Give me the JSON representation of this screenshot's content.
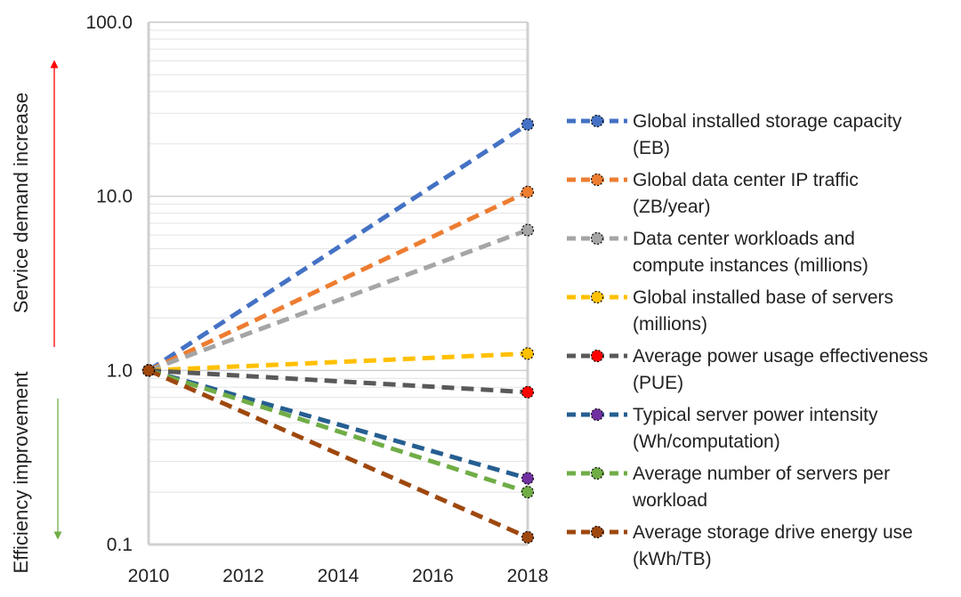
{
  "chart_data": {
    "type": "line",
    "y_scale": "log",
    "ylim": [
      0.1,
      100.0
    ],
    "y_ticks": [
      0.1,
      1.0,
      10.0,
      100.0
    ],
    "y_tick_labels": [
      "0.1",
      "1.0",
      "10.0",
      "100.0"
    ],
    "xlim": [
      2010,
      2018
    ],
    "x_ticks": [
      2010,
      2012,
      2014,
      2016,
      2018
    ],
    "x_tick_labels": [
      "2010",
      "2012",
      "2014",
      "2016",
      "2018"
    ],
    "grid": "horizontal minor log gridlines",
    "legend_position": "right",
    "series": [
      {
        "name": [
          "Global installed storage capacity",
          "(EB)"
        ],
        "x": [
          2010,
          2018
        ],
        "y": [
          1.0,
          25.9
        ],
        "color": "#4472C4",
        "marker": "#4472C4"
      },
      {
        "name": [
          "Global data center IP traffic",
          "(ZB/year)"
        ],
        "x": [
          2010,
          2018
        ],
        "y": [
          1.0,
          10.6
        ],
        "color": "#ED7D31",
        "marker": "#ED7D31"
      },
      {
        "name": [
          "Data center workloads and",
          "compute instances (millions)"
        ],
        "x": [
          2010,
          2018
        ],
        "y": [
          1.0,
          6.4
        ],
        "color": "#A5A5A5",
        "marker": "#A5A5A5"
      },
      {
        "name": [
          "Global installed base of servers",
          "(millions)"
        ],
        "x": [
          2010,
          2018
        ],
        "y": [
          1.0,
          1.25
        ],
        "color": "#FFC000",
        "marker": "#FFC000"
      },
      {
        "name": [
          "Average power usage effectiveness",
          "(PUE)"
        ],
        "x": [
          2010,
          2018
        ],
        "y": [
          1.0,
          0.75
        ],
        "color": "#595959",
        "marker": "#FF0000"
      },
      {
        "name": [
          "Typical server power intensity",
          "(Wh/computation)"
        ],
        "x": [
          2010,
          2018
        ],
        "y": [
          1.0,
          0.24
        ],
        "color": "#255E91",
        "marker": "#7030A0"
      },
      {
        "name": [
          "Average number of servers per",
          "workload"
        ],
        "x": [
          2010,
          2018
        ],
        "y": [
          1.0,
          0.2
        ],
        "color": "#70AD47",
        "marker": "#70AD47"
      },
      {
        "name": [
          "Average storage drive energy use",
          "(kWh/TB)"
        ],
        "x": [
          2010,
          2018
        ],
        "y": [
          1.0,
          0.11
        ],
        "color": "#9E480E",
        "marker": "#9E480E"
      }
    ],
    "annotations": {
      "up": {
        "text": "Service demand increase",
        "color": "#FF0000"
      },
      "down": {
        "text": "Efficiency improvement",
        "color": "#70AD47"
      }
    }
  }
}
